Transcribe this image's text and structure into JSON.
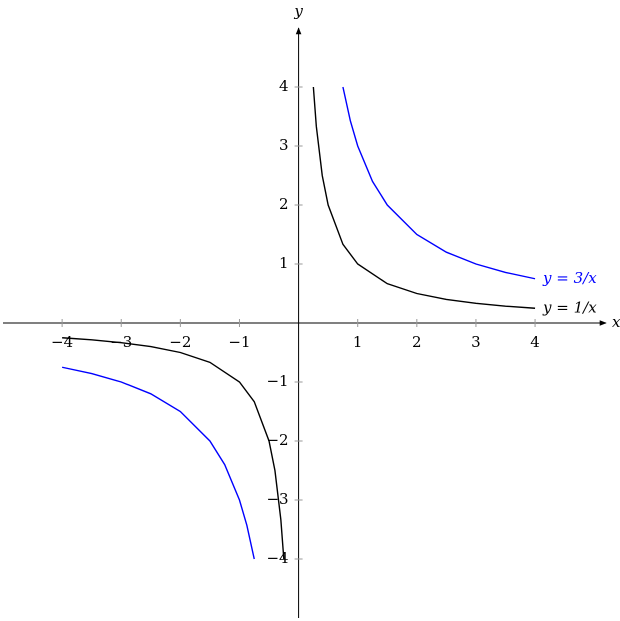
{
  "chart_data": {
    "type": "line",
    "x_label": "x",
    "y_label": "y",
    "xlim": [
      -5,
      5.2
    ],
    "ylim": [
      -5,
      5
    ],
    "xticks": [
      {
        "value": -4,
        "label": "−4"
      },
      {
        "value": -3,
        "label": "−3"
      },
      {
        "value": -2,
        "label": "−2"
      },
      {
        "value": -1,
        "label": "−1"
      },
      1,
      2,
      3,
      4
    ],
    "yticks": [
      {
        "value": -4,
        "label": "−4"
      },
      {
        "value": -3,
        "label": "−3"
      },
      {
        "value": -2,
        "label": "−2"
      },
      {
        "value": -1,
        "label": "−1"
      },
      1,
      2,
      3,
      4
    ],
    "series": [
      {
        "name": "y = 1/x",
        "color": "#000000",
        "x": [
          -4,
          -3.5,
          -3,
          -2.5,
          -2,
          -1.5,
          -1,
          -0.75,
          -0.5,
          -0.4,
          -0.3,
          -0.25,
          0,
          0.25,
          0.3,
          0.4,
          0.5,
          0.75,
          1,
          1.5,
          2,
          2.5,
          3,
          3.5,
          4
        ],
        "values": [
          -0.25,
          -0.2857,
          -0.3333,
          -0.4,
          -0.5,
          -0.6667,
          -1,
          -1.3333,
          -2,
          -2.5,
          -3.3333,
          -4,
          null,
          4,
          3.3333,
          2.5,
          2,
          1.3333,
          1,
          0.6667,
          0.5,
          0.4,
          0.3333,
          0.2857,
          0.25
        ]
      },
      {
        "name": "y = 3/x",
        "color": "#0000ff",
        "x": [
          -4,
          -3.5,
          -3,
          -2.5,
          -2,
          -1.5,
          -1.25,
          -1,
          -0.875,
          -0.75,
          0,
          0.75,
          0.875,
          1,
          1.25,
          1.5,
          2,
          2.5,
          3,
          3.5,
          4
        ],
        "values": [
          -0.75,
          -0.8571,
          -1,
          -1.2,
          -1.5,
          -2,
          -2.4,
          -3,
          -3.4286,
          -4,
          null,
          4,
          3.4286,
          3,
          2.4,
          2,
          1.5,
          1.2,
          1,
          0.8571,
          0.75
        ]
      }
    ]
  }
}
